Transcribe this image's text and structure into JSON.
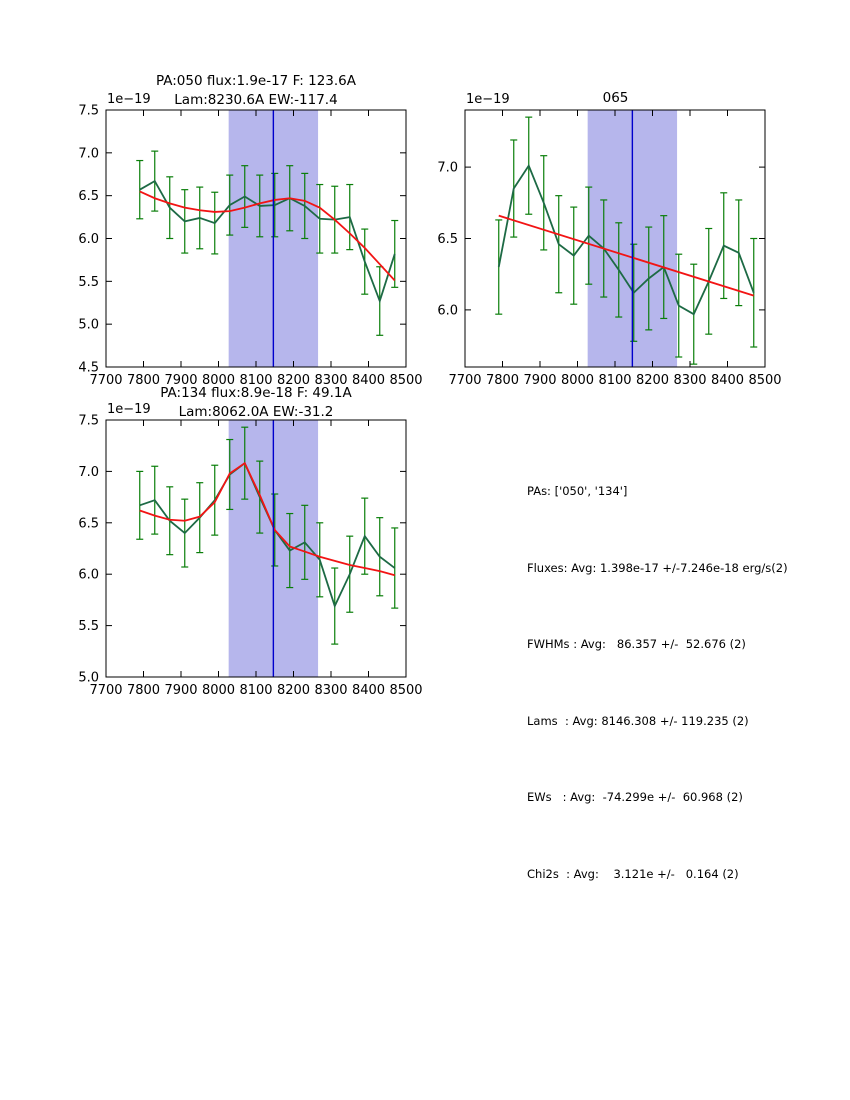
{
  "colors": {
    "band": "#b6b6ec",
    "vline": "#0000cc",
    "errorbar": "#0a7e0a",
    "data_line": "#1d6a45",
    "fit_line": "#f21414",
    "axis": "#000000",
    "background": "#ffffff"
  },
  "chart_data": [
    {
      "id": "pa050",
      "type": "line",
      "title_line1": "PA:050 flux:1.9e-17 F: 123.6A",
      "title_line2": "Lam:8230.6A EW:-117.4",
      "offset_text": "1e−19",
      "xlim": [
        7700,
        8500
      ],
      "ylim": [
        4.5,
        7.5
      ],
      "xticks": [
        7700,
        7800,
        7900,
        8000,
        8100,
        8200,
        8300,
        8400,
        8500
      ],
      "yticks": [
        4.5,
        5.0,
        5.5,
        6.0,
        6.5,
        7.0,
        7.5
      ],
      "band": [
        8027.1,
        8265.5
      ],
      "vline": 8146.3,
      "grid": false,
      "legend": "none",
      "x": [
        7790,
        7830,
        7870,
        7910,
        7950,
        7990,
        8030,
        8070,
        8110,
        8150,
        8190,
        8230,
        8270,
        8310,
        8350,
        8390,
        8430,
        8470
      ],
      "series": [
        {
          "name": "spectrum-data",
          "values": [
            6.57,
            6.67,
            6.36,
            6.2,
            6.24,
            6.18,
            6.39,
            6.49,
            6.38,
            6.39,
            6.47,
            6.38,
            6.23,
            6.22,
            6.25,
            5.73,
            5.27,
            5.82
          ],
          "errors": [
            0.34,
            0.35,
            0.36,
            0.37,
            0.36,
            0.36,
            0.35,
            0.36,
            0.36,
            0.37,
            0.38,
            0.38,
            0.4,
            0.39,
            0.38,
            0.38,
            0.4,
            0.39
          ]
        },
        {
          "name": "gaussian-fit",
          "x": [
            7790,
            7830,
            7870,
            7910,
            7950,
            7990,
            8030,
            8070,
            8110,
            8150,
            8190,
            8230,
            8270,
            8310,
            8350,
            8390,
            8430,
            8470
          ],
          "values": [
            6.55,
            6.47,
            6.41,
            6.36,
            6.33,
            6.31,
            6.32,
            6.36,
            6.41,
            6.45,
            6.47,
            6.44,
            6.36,
            6.22,
            6.06,
            5.89,
            5.7,
            5.51
          ]
        }
      ]
    },
    {
      "id": "065",
      "type": "line",
      "title_line1": "065",
      "title_line2": "",
      "offset_text": "1e−19",
      "xlim": [
        7700,
        8500
      ],
      "ylim": [
        5.6,
        7.4
      ],
      "xticks": [
        7700,
        7800,
        7900,
        8000,
        8100,
        8200,
        8300,
        8400,
        8500
      ],
      "yticks": [
        6.0,
        6.5,
        7.0
      ],
      "band": [
        8027.1,
        8265.5
      ],
      "vline": 8146.3,
      "grid": false,
      "legend": "none",
      "x": [
        7790,
        7830,
        7870,
        7910,
        7950,
        7990,
        8030,
        8070,
        8110,
        8150,
        8190,
        8230,
        8270,
        8310,
        8350,
        8390,
        8430,
        8470
      ],
      "series": [
        {
          "name": "spectrum-data",
          "values": [
            6.3,
            6.85,
            7.01,
            6.75,
            6.46,
            6.38,
            6.52,
            6.43,
            6.28,
            6.12,
            6.22,
            6.3,
            6.03,
            5.97,
            6.2,
            6.45,
            6.4,
            6.12
          ],
          "errors": [
            0.33,
            0.34,
            0.34,
            0.33,
            0.34,
            0.34,
            0.34,
            0.34,
            0.33,
            0.34,
            0.36,
            0.36,
            0.36,
            0.35,
            0.37,
            0.37,
            0.37,
            0.38
          ]
        },
        {
          "name": "linear-fit",
          "x": [
            7790,
            8470
          ],
          "values": [
            6.66,
            6.1
          ]
        }
      ]
    },
    {
      "id": "pa134",
      "type": "line",
      "title_line1": "PA:134 flux:8.9e-18 F: 49.1A",
      "title_line2": "Lam:8062.0A EW:-31.2",
      "offset_text": "1e−19",
      "xlim": [
        7700,
        8500
      ],
      "ylim": [
        5.0,
        7.5
      ],
      "xticks": [
        7700,
        7800,
        7900,
        8000,
        8100,
        8200,
        8300,
        8400,
        8500
      ],
      "yticks": [
        5.0,
        5.5,
        6.0,
        6.5,
        7.0,
        7.5
      ],
      "band": [
        8027.1,
        8265.5
      ],
      "vline": 8146.3,
      "grid": false,
      "legend": "none",
      "x": [
        7790,
        7830,
        7870,
        7910,
        7950,
        7990,
        8030,
        8070,
        8110,
        8150,
        8190,
        8230,
        8270,
        8310,
        8350,
        8390,
        8430,
        8470
      ],
      "series": [
        {
          "name": "spectrum-data",
          "values": [
            6.67,
            6.72,
            6.52,
            6.4,
            6.55,
            6.72,
            6.97,
            7.08,
            6.75,
            6.43,
            6.23,
            6.31,
            6.14,
            5.69,
            6.0,
            6.37,
            6.17,
            6.06
          ],
          "errors": [
            0.33,
            0.33,
            0.33,
            0.33,
            0.34,
            0.34,
            0.34,
            0.35,
            0.35,
            0.35,
            0.36,
            0.36,
            0.36,
            0.37,
            0.37,
            0.37,
            0.38,
            0.39
          ]
        },
        {
          "name": "gaussian-fit",
          "x": [
            7790,
            7830,
            7870,
            7910,
            7950,
            7990,
            8030,
            8070,
            8110,
            8150,
            8190,
            8230,
            8270,
            8310,
            8350,
            8390,
            8430,
            8470
          ],
          "values": [
            6.62,
            6.57,
            6.53,
            6.52,
            6.56,
            6.7,
            6.98,
            7.08,
            6.77,
            6.43,
            6.27,
            6.22,
            6.17,
            6.13,
            6.09,
            6.06,
            6.03,
            5.99
          ]
        }
      ]
    }
  ],
  "stats_panel": {
    "lines": [
      "PAs: ['050', '134']",
      "Fluxes: Avg: 1.398e-17 +/-7.246e-18 erg/s(2)",
      "FWHMs : Avg:   86.357 +/-  52.676 (2)",
      "Lams  : Avg: 8146.308 +/- 119.235 (2)",
      "EWs   : Avg:  -74.299e +/-  60.968 (2)",
      "Chi2s  : Avg:    3.121e +/-   0.164 (2)"
    ]
  }
}
